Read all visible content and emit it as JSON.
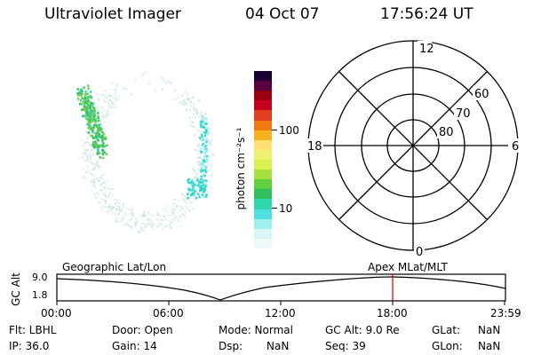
{
  "header": {
    "title": "Ultraviolet Imager",
    "date": "04 Oct 07",
    "time": "17:56:24 UT"
  },
  "colorbar": {
    "unit_label": "photon cm⁻²s⁻¹",
    "ticks": [
      "100",
      "10"
    ],
    "colors": [
      "#1a0030",
      "#5a0040",
      "#9a0010",
      "#c80020",
      "#e04020",
      "#f07a10",
      "#f7b020",
      "#ffe070",
      "#f0f070",
      "#d8f050",
      "#a8e040",
      "#60d040",
      "#30c060",
      "#30d8b0",
      "#50e0e0",
      "#a0eef0",
      "#d8f6f6",
      "#eefafa"
    ]
  },
  "polar_grid": {
    "mlt_labels": {
      "top": "12",
      "left": "18",
      "right": "6",
      "bottom": "0"
    },
    "lat_labels": [
      "60",
      "70",
      "80"
    ]
  },
  "lower_panel": {
    "y_axis_label": "GC Alt",
    "y_ticks": [
      "9.0",
      "1.8"
    ],
    "left_title": "Geographic Lat/Lon",
    "right_title": "Apex  MLat/MLT",
    "x_ticks": [
      "00:00",
      "06:00",
      "12:00",
      "18:00",
      "23:59"
    ]
  },
  "info": {
    "flt": "Flt: LBHL",
    "door": "Door: Open",
    "mode": "Mode: Normal",
    "gcalt": "GC Alt: 9.0 Re",
    "glat_label": "GLat:",
    "glat_value": "NaN",
    "ip": "IP: 36.0",
    "gain": "Gain: 14",
    "dsp_label": "Dsp:",
    "dsp_value": "NaN",
    "seq": "Seq: 39",
    "glon_label": "GLon:",
    "glon_value": "NaN"
  }
}
